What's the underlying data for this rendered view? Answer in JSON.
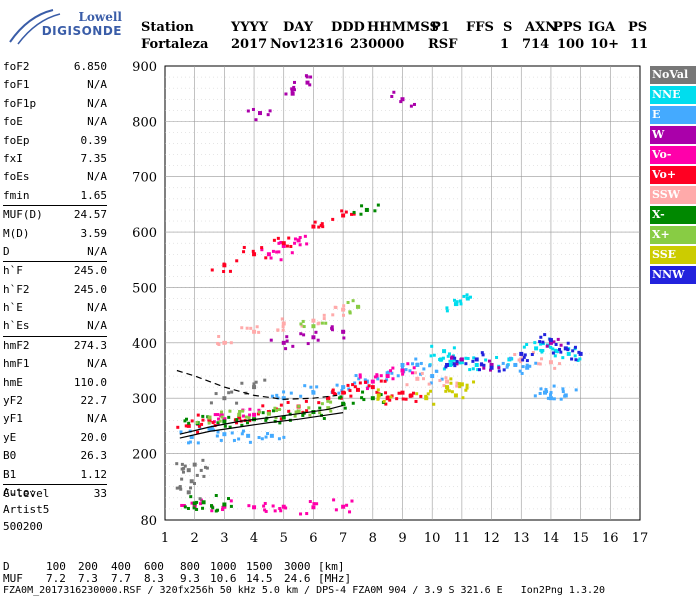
{
  "logo": {
    "line1": "Lowell",
    "line2": "DIGISONDE"
  },
  "header": {
    "row1": [
      "Station",
      "YYYY",
      "DAY",
      "DDD",
      "HHMMSS",
      "P1",
      "FFS",
      "S",
      "AXN",
      "PPS",
      "IGA",
      "PS"
    ],
    "row2": [
      "Fortaleza",
      "2017",
      "Nov12",
      "316",
      "230000",
      "RSF",
      "1",
      "714",
      "100",
      "10+",
      "11"
    ]
  },
  "params": [
    {
      "group": [
        {
          "label": "foF2",
          "value": "6.850"
        },
        {
          "label": "foF1",
          "value": "N/A"
        },
        {
          "label": "foF1p",
          "value": "N/A"
        },
        {
          "label": "foE",
          "value": "N/A"
        },
        {
          "label": "foEp",
          "value": "0.39"
        },
        {
          "label": "fxI",
          "value": "7.35"
        },
        {
          "label": "foEs",
          "value": "N/A"
        },
        {
          "label": "fmin",
          "value": "1.65"
        }
      ]
    },
    {
      "group": [
        {
          "label": "MUF(D)",
          "value": "24.57"
        },
        {
          "label": "M(D)",
          "value": "3.59"
        },
        {
          "label": "D",
          "value": "N/A"
        }
      ]
    },
    {
      "group": [
        {
          "label": "h`F",
          "value": "245.0"
        },
        {
          "label": "h`F2",
          "value": "245.0"
        },
        {
          "label": "h`E",
          "value": "N/A"
        },
        {
          "label": "h`Es",
          "value": "N/A"
        }
      ]
    },
    {
      "group": [
        {
          "label": "hmF2",
          "value": "274.3"
        },
        {
          "label": "hmF1",
          "value": "N/A"
        },
        {
          "label": "hmE",
          "value": "110.0"
        },
        {
          "label": "yF2",
          "value": "22.7"
        },
        {
          "label": "yF1",
          "value": "N/A"
        },
        {
          "label": "yE",
          "value": "20.0"
        },
        {
          "label": "B0",
          "value": "26.3"
        },
        {
          "label": "B1",
          "value": "1.12"
        }
      ]
    },
    {
      "group": [
        {
          "label": "C-level",
          "value": "33"
        }
      ]
    }
  ],
  "extra": {
    "line1": "Auto:",
    "line2": "Artist5",
    "line3": "500200"
  },
  "legend": [
    {
      "label": "NoVal",
      "color": "#777777"
    },
    {
      "label": "NNE",
      "color": "#00ddee"
    },
    {
      "label": "E",
      "color": "#44aaff"
    },
    {
      "label": "W",
      "color": "#aa00aa"
    },
    {
      "label": "Vo-",
      "color": "#ff00aa"
    },
    {
      "label": "Vo+",
      "color": "#ff0022"
    },
    {
      "label": "SSW",
      "color": "#ffaaaa"
    },
    {
      "label": "X-",
      "color": "#008800"
    },
    {
      "label": "X+",
      "color": "#88cc44"
    },
    {
      "label": "SSE",
      "color": "#cccc00"
    },
    {
      "label": "NNW",
      "color": "#2222dd"
    }
  ],
  "chart_data": {
    "type": "scatter",
    "xlim": [
      1,
      17
    ],
    "ylim": [
      80,
      900
    ],
    "xticks": [
      "1",
      "2",
      "3",
      "4",
      "5",
      "6",
      "7",
      "8",
      "9",
      "10",
      "11",
      "12",
      "13",
      "14",
      "15",
      "16",
      "17"
    ],
    "yticks": [
      "80",
      "200",
      "300",
      "400",
      "500",
      "600",
      "700",
      "800",
      "900"
    ],
    "grid": true,
    "legend_position": "right",
    "series": [
      {
        "name": "NNE",
        "points": [
          [
            10.3,
            370
          ],
          [
            10.6,
            360
          ],
          [
            11.0,
            365
          ],
          [
            10.8,
            470
          ],
          [
            11.2,
            480
          ],
          [
            13.5,
            390
          ],
          [
            14.2,
            385
          ],
          [
            14.6,
            380
          ],
          [
            13.9,
            395
          ],
          [
            12.6,
            370
          ],
          [
            10.4,
            385
          ],
          [
            11.5,
            360
          ]
        ]
      },
      {
        "name": "E",
        "points": [
          [
            5.0,
            300
          ],
          [
            6.0,
            310
          ],
          [
            7.0,
            320
          ],
          [
            7.8,
            330
          ],
          [
            8.5,
            345
          ],
          [
            9.0,
            360
          ],
          [
            9.5,
            360
          ],
          [
            10.0,
            340
          ],
          [
            12.8,
            360
          ],
          [
            13.2,
            355
          ],
          [
            14.0,
            300
          ],
          [
            14.5,
            305
          ],
          [
            13.8,
            310
          ],
          [
            3.0,
            235
          ],
          [
            3.8,
            232
          ],
          [
            4.6,
            232
          ],
          [
            2.5,
            245
          ],
          [
            1.9,
            230
          ]
        ]
      },
      {
        "name": "W",
        "points": [
          [
            4.2,
            815
          ],
          [
            5.3,
            850
          ],
          [
            5.8,
            870
          ],
          [
            9.0,
            840
          ],
          [
            5.0,
            400
          ],
          [
            6.0,
            410
          ],
          [
            7.0,
            420
          ],
          [
            11.0,
            370
          ],
          [
            14.0,
            400
          ],
          [
            12.0,
            360
          ]
        ]
      },
      {
        "name": "Vo-",
        "points": [
          [
            2.0,
            105
          ],
          [
            3.0,
            104
          ],
          [
            4.0,
            103
          ],
          [
            5.0,
            104
          ],
          [
            6.0,
            103
          ],
          [
            7.0,
            104
          ],
          [
            8.0,
            330
          ],
          [
            8.5,
            340
          ],
          [
            9.0,
            350
          ],
          [
            4.5,
            560
          ],
          [
            5.0,
            575
          ],
          [
            5.5,
            585
          ],
          [
            2.5,
            260
          ],
          [
            3.0,
            262
          ],
          [
            4.0,
            270
          ]
        ]
      },
      {
        "name": "Vo+",
        "points": [
          [
            1.8,
            250
          ],
          [
            2.5,
            260
          ],
          [
            3.5,
            265
          ],
          [
            4.5,
            275
          ],
          [
            5.5,
            285
          ],
          [
            6.5,
            300
          ],
          [
            7.0,
            310
          ],
          [
            7.5,
            315
          ],
          [
            8.0,
            320
          ],
          [
            8.5,
            300
          ],
          [
            9.0,
            310
          ],
          [
            9.3,
            305
          ],
          [
            5.0,
            580
          ],
          [
            6.0,
            610
          ],
          [
            7.0,
            630
          ],
          [
            3.0,
            540
          ],
          [
            4.0,
            560
          ]
        ]
      },
      {
        "name": "SSW",
        "points": [
          [
            3.0,
            400
          ],
          [
            4.0,
            420
          ],
          [
            5.0,
            435
          ],
          [
            6.0,
            440
          ],
          [
            7.0,
            460
          ],
          [
            13.0,
            370
          ],
          [
            14.0,
            365
          ],
          [
            9.5,
            335
          ],
          [
            10.5,
            330
          ]
        ]
      },
      {
        "name": "X-",
        "points": [
          [
            2.0,
            110
          ],
          [
            2.3,
            112
          ],
          [
            3.0,
            108
          ],
          [
            2.1,
            255
          ],
          [
            3.0,
            258
          ],
          [
            4.0,
            262
          ],
          [
            5.0,
            265
          ],
          [
            6.0,
            275
          ],
          [
            7.0,
            290
          ],
          [
            8.0,
            300
          ],
          [
            7.8,
            640
          ]
        ]
      },
      {
        "name": "X+",
        "points": [
          [
            2.5,
            265
          ],
          [
            3.5,
            270
          ],
          [
            4.5,
            272
          ],
          [
            5.5,
            276
          ],
          [
            6.5,
            282
          ],
          [
            6.0,
            430
          ],
          [
            7.5,
            465
          ]
        ]
      },
      {
        "name": "SSE",
        "points": [
          [
            10.5,
            320
          ],
          [
            11.0,
            325
          ],
          [
            10.8,
            305
          ],
          [
            9.8,
            300
          ],
          [
            8.2,
            305
          ]
        ]
      },
      {
        "name": "NNW",
        "points": [
          [
            10.5,
            360
          ],
          [
            11.5,
            370
          ],
          [
            12.0,
            355
          ],
          [
            13.0,
            380
          ],
          [
            14.0,
            405
          ],
          [
            14.5,
            390
          ],
          [
            15.0,
            380
          ]
        ]
      },
      {
        "name": "NoVal",
        "points": [
          [
            1.8,
            170
          ],
          [
            1.9,
            150
          ],
          [
            1.8,
            130
          ],
          [
            2.0,
            180
          ],
          [
            3.0,
            300
          ],
          [
            4.0,
            320
          ]
        ]
      }
    ],
    "curves": [
      {
        "points": [
          [
            1.5,
            235
          ],
          [
            2.5,
            248
          ],
          [
            3.5,
            258
          ],
          [
            4.5,
            265
          ],
          [
            5.5,
            272
          ],
          [
            6.5,
            280
          ],
          [
            7.0,
            287
          ]
        ]
      },
      {
        "points": [
          [
            1.5,
            228
          ],
          [
            2.5,
            240
          ],
          [
            3.5,
            248
          ],
          [
            4.5,
            256
          ],
          [
            5.5,
            262
          ],
          [
            6.5,
            270
          ],
          [
            7.0,
            274
          ]
        ]
      },
      {
        "dashed": true,
        "points": [
          [
            1.4,
            350
          ],
          [
            2.0,
            340
          ],
          [
            3.0,
            320
          ],
          [
            4.0,
            305
          ],
          [
            5.0,
            298
          ],
          [
            6.0,
            300
          ],
          [
            6.8,
            305
          ]
        ]
      }
    ]
  },
  "footer": {
    "d_row": [
      "D",
      "100",
      "200",
      "400",
      "600",
      "800",
      "1000",
      "1500",
      "3000",
      "[km]"
    ],
    "muf_row": [
      "MUF",
      "7.2",
      "7.3",
      "7.7",
      "8.3",
      "9.3",
      "10.6",
      "14.5",
      "24.6",
      "[MHz]"
    ],
    "file_line": "FZA0M_2017316230000.RSF / 320fx256h 50 kHz 5.0 km / DPS-4 FZA0M 904 / 3.9 S 321.6 E   Ion2Png 1.3.20"
  }
}
